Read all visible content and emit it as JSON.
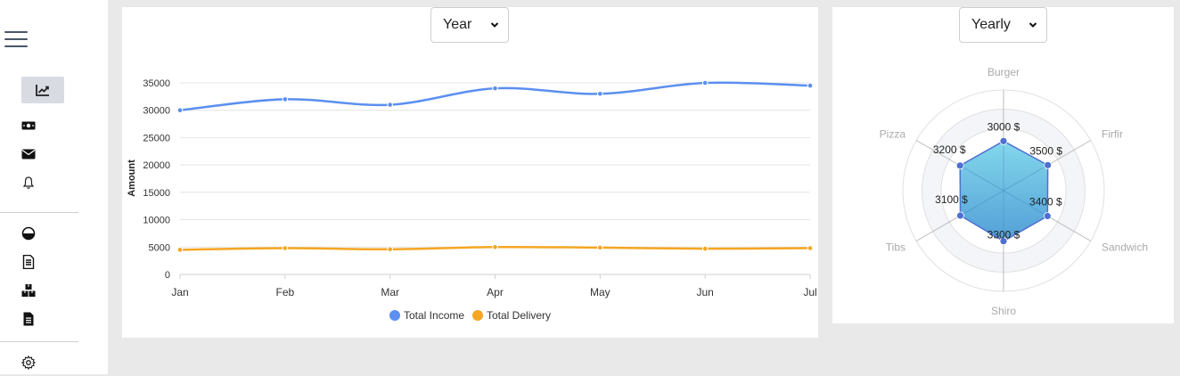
{
  "sidebar": {
    "items": [
      {
        "name": "analytics-icon",
        "active": true
      },
      {
        "name": "money-icon",
        "active": false
      },
      {
        "name": "mail-icon",
        "active": false
      },
      {
        "name": "bell-icon",
        "active": false
      },
      {
        "name": "chart-pie-icon",
        "active": false
      },
      {
        "name": "document-list-icon",
        "active": false
      },
      {
        "name": "boxes-icon",
        "active": false
      },
      {
        "name": "document-icon",
        "active": false
      },
      {
        "name": "settings-icon",
        "active": false
      }
    ]
  },
  "line_panel": {
    "select_value": "Year"
  },
  "radar_panel": {
    "select_value": "Yearly"
  },
  "colors": {
    "income": "#5b8ff0",
    "delivery": "#f5a623",
    "radar_fill": "#5bc4e3",
    "radar_stroke": "#4f6fd1"
  },
  "chart_data": [
    {
      "type": "line",
      "categories": [
        "Jan",
        "Feb",
        "Mar",
        "Apr",
        "May",
        "Jun",
        "Jul"
      ],
      "ylabel": "Amount",
      "ylim": [
        0,
        35000
      ],
      "yticks": [
        0,
        5000,
        10000,
        15000,
        20000,
        25000,
        30000,
        35000
      ],
      "grid": true,
      "legend": "bottom",
      "series": [
        {
          "name": "Total Income",
          "values": [
            30000,
            32000,
            31000,
            34000,
            33000,
            35000,
            34500
          ]
        },
        {
          "name": "Total Delivery",
          "values": [
            4500,
            4800,
            4600,
            5000,
            4900,
            4700,
            4800
          ]
        }
      ]
    },
    {
      "type": "radar",
      "categories": [
        "Burger",
        "Firfir",
        "Sandwich",
        "Shiro",
        "Tibs",
        "Pizza"
      ],
      "values": [
        3000,
        3500,
        3400,
        3300,
        3100,
        3200
      ],
      "value_labels": [
        "3000 $",
        "3500 $",
        "3400 $",
        "3300 $",
        "3100 $",
        "3200 $"
      ]
    }
  ]
}
